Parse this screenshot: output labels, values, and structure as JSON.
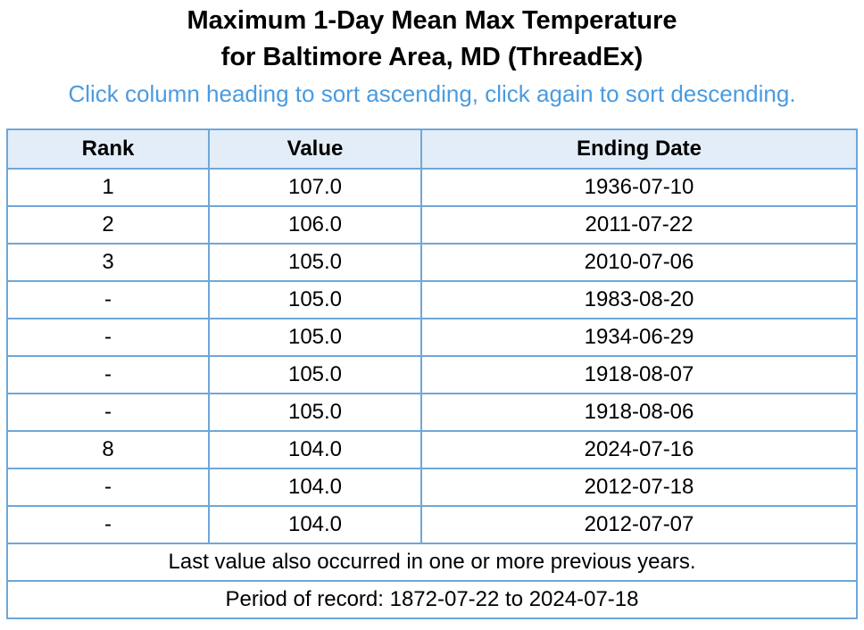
{
  "title": {
    "line1": "Maximum 1-Day Mean Max Temperature",
    "line2": "for Baltimore Area, MD (ThreadEx)"
  },
  "instructions": "Click column heading to sort ascending, click again to sort descending.",
  "table": {
    "headers": {
      "rank": "Rank",
      "value": "Value",
      "ending_date": "Ending Date"
    },
    "rows": [
      {
        "rank": "1",
        "value": "107.0",
        "ending_date": "1936-07-10"
      },
      {
        "rank": "2",
        "value": "106.0",
        "ending_date": "2011-07-22"
      },
      {
        "rank": "3",
        "value": "105.0",
        "ending_date": "2010-07-06"
      },
      {
        "rank": "-",
        "value": "105.0",
        "ending_date": "1983-08-20"
      },
      {
        "rank": "-",
        "value": "105.0",
        "ending_date": "1934-06-29"
      },
      {
        "rank": "-",
        "value": "105.0",
        "ending_date": "1918-08-07"
      },
      {
        "rank": "-",
        "value": "105.0",
        "ending_date": "1918-08-06"
      },
      {
        "rank": "8",
        "value": "104.0",
        "ending_date": "2024-07-16"
      },
      {
        "rank": "-",
        "value": "104.0",
        "ending_date": "2012-07-18"
      },
      {
        "rank": "-",
        "value": "104.0",
        "ending_date": "2012-07-07"
      }
    ],
    "footnote": "Last value also occurred in one or more previous years.",
    "period_of_record": "Period of record: 1872-07-22 to 2024-07-18"
  },
  "colors": {
    "accent_text": "#4a9be0",
    "table_border": "#6fa7d8",
    "header_background": "#e3edf8"
  }
}
